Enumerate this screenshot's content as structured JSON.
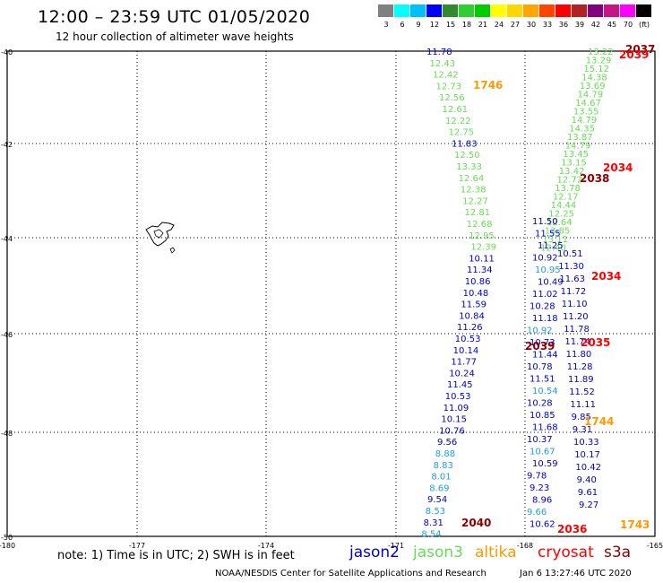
{
  "title": "12:00 – 23:59 UTC 01/05/2020",
  "subtitle": "12 hour collection of altimeter wave heights",
  "legend": {
    "colors": [
      "#808080",
      "#00ffff",
      "#00bfff",
      "#0000ff",
      "#2e8b2e",
      "#32cd32",
      "#00cc00",
      "#ffff00",
      "#ffd700",
      "#ffa500",
      "#ff4500",
      "#ff0000",
      "#b22222",
      "#800080",
      "#c71585",
      "#ff00ff",
      "#000000"
    ],
    "labels": [
      "3",
      "6",
      "9",
      "12",
      "15",
      "18",
      "21",
      "24",
      "27",
      "30",
      "33",
      "36",
      "39",
      "42",
      "45",
      "70",
      "(ft)"
    ]
  },
  "axes": {
    "lat_labels": [
      "-40",
      "-42",
      "-44",
      "-46",
      "-48",
      "-50"
    ],
    "lon_labels": [
      "-180",
      "-177",
      "-174",
      "-171",
      "-168",
      "-165"
    ]
  },
  "colors": {
    "jason2": "#0000cc",
    "jason3": "#66dd55",
    "altika": "#ff9900",
    "cryosat": "#ff0000",
    "s3a": "#8b0000",
    "jason2_light": "#1e9fe0"
  },
  "tracks": {
    "jason2_west": {
      "color": "jason2",
      "values": [
        "11.78",
        "12.43",
        "12.42",
        "12.73",
        "12.56",
        "12.61",
        "12.22",
        "12.75",
        "11.83",
        "12.50",
        "13.33",
        "12.64",
        "12.38",
        "12.27",
        "12.81",
        "12.68",
        "12.95",
        "12.39",
        "10.11",
        "11.34",
        "10.86",
        "10.48",
        "11.59",
        "10.84",
        "11.26",
        "10.53",
        "10.14",
        "11.77",
        "10.24",
        "11.45",
        "10.53",
        "11.09",
        "10.15",
        "10.76",
        "9.56",
        "8.88",
        "8.83",
        "8.01",
        "8.69",
        "9.54",
        "8.53",
        "8.31",
        "8.54"
      ],
      "color_idx": [
        "j2",
        "j3",
        "j3",
        "j3",
        "j3",
        "j3",
        "j3",
        "j3",
        "j2",
        "j3",
        "j3",
        "j3",
        "j3",
        "j3",
        "j3",
        "j3",
        "j3",
        "j3",
        "j2",
        "j2",
        "j2",
        "j2",
        "j2",
        "j2",
        "j2",
        "j2",
        "j2",
        "j2",
        "j2",
        "j2",
        "j2",
        "j2",
        "j2",
        "j2",
        "j2",
        "lb",
        "lb",
        "lb",
        "lb",
        "j2",
        "lb",
        "j2",
        "lb"
      ]
    },
    "jason2_east": {
      "values": [
        "11.50",
        "11.55",
        "11.25",
        "10.92",
        "10.95",
        "10.49",
        "11.02",
        "10.28",
        "11.18",
        "10.92",
        "10.73",
        "11.44",
        "10.78",
        "11.51",
        "10.54",
        "10.28",
        "10.85",
        "11.68",
        "10.37",
        "10.67",
        "10.59",
        "9.78",
        "9.23",
        "8.96",
        "9.66",
        "10.62"
      ]
    },
    "jason3_east": {
      "values": [
        "13.22",
        "13.29",
        "15.12",
        "14.38",
        "13.69",
        "14.79",
        "14.67",
        "13.55",
        "14.79",
        "14.35",
        "13.87",
        "14.79",
        "13.45",
        "13.15",
        "13.42",
        "12.72",
        "13.78",
        "12.17",
        "14.44",
        "12.25",
        "12.64",
        "13.85",
        "13.11",
        "12.40"
      ]
    },
    "far_east": {
      "values": [
        "10.51",
        "11.30",
        "11.63",
        "11.72",
        "11.10",
        "11.20",
        "11.78",
        "11.74",
        "11.80",
        "11.28",
        "11.89",
        "11.52",
        "11.11",
        "9.85",
        "9.31",
        "10.33",
        "10.17",
        "10.42",
        "9.40",
        "9.61",
        "9.27"
      ]
    }
  },
  "time_labels": [
    {
      "text": "1746",
      "sat": "altika"
    },
    {
      "text": "2037",
      "sat": "s3a"
    },
    {
      "text": "2039",
      "sat": "cryosat"
    },
    {
      "text": "2034",
      "sat": "cryosat"
    },
    {
      "text": "2038",
      "sat": "s3a"
    },
    {
      "text": "2034",
      "sat": "cryosat"
    },
    {
      "text": "2039",
      "sat": "s3a"
    },
    {
      "text": "2035",
      "sat": "cryosat"
    },
    {
      "text": "1744",
      "sat": "altika"
    },
    {
      "text": "2040",
      "sat": "s3a"
    },
    {
      "text": "2036",
      "sat": "cryosat"
    },
    {
      "text": "1743",
      "sat": "altika"
    }
  ],
  "note": "note: 1) Time is in UTC; 2) SWH is in feet",
  "satellites": {
    "jason2": "jason2",
    "jason3": "jason3",
    "altika": "altika",
    "cryosat": "cryosat",
    "s3a": "s3a"
  },
  "footer_left": "NOAA/NESDIS Center for Satellite Applications and Research",
  "footer_right": "Jan  6 13:27:46 UTC 2020"
}
